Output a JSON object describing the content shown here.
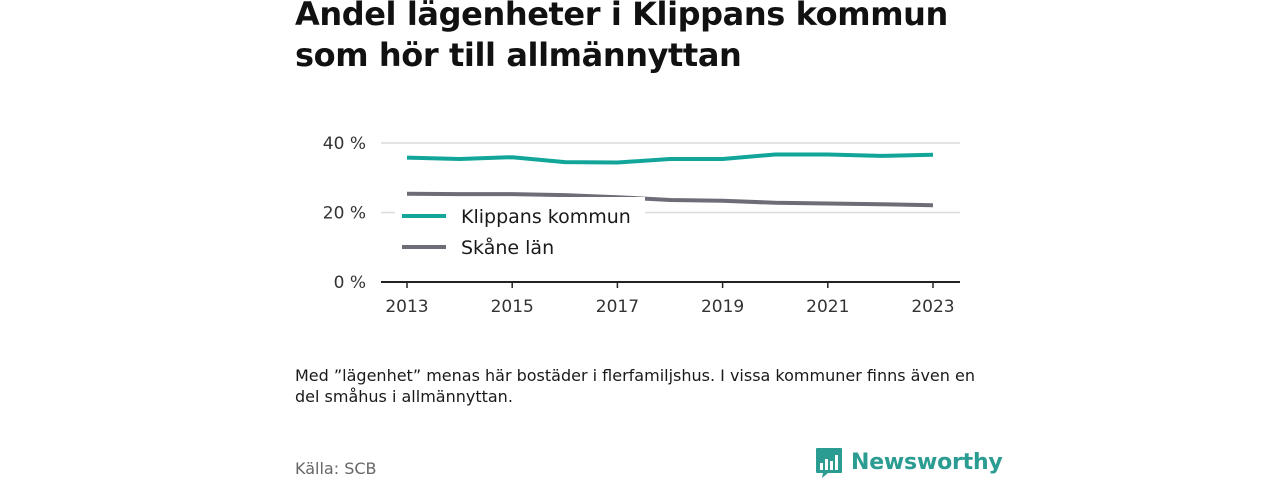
{
  "title": "Andel lägenheter i Klippans kommun som hör till allmännyttan",
  "note": "Med ”lägenhet” menas här bostäder i flerfamiljshus. I vissa kommuner finns även en del småhus i allmännyttan.",
  "source": "Källa: SCB",
  "brand": {
    "name": "Newsworthy",
    "icon": "bar-chart-speech-bubble-icon",
    "color": "#2b9c91"
  },
  "chart_data": {
    "type": "line",
    "x": [
      2013,
      2014,
      2015,
      2016,
      2017,
      2018,
      2019,
      2020,
      2021,
      2022,
      2023
    ],
    "series": [
      {
        "name": "Klippans kommun",
        "color": "#12a59a",
        "values": [
          35.8,
          35.4,
          35.9,
          34.5,
          34.4,
          35.4,
          35.4,
          36.7,
          36.7,
          36.3,
          36.6
        ]
      },
      {
        "name": "Skåne län",
        "color": "#6e6d77",
        "values": [
          25.4,
          25.3,
          25.3,
          25.0,
          24.4,
          23.6,
          23.4,
          22.8,
          22.6,
          22.4,
          22.1
        ]
      }
    ],
    "ylim": [
      0,
      40
    ],
    "yticks": [
      0,
      20,
      40
    ],
    "ytick_labels": [
      "0 %",
      "20 %",
      "40 %"
    ],
    "xticks": [
      2013,
      2015,
      2017,
      2019,
      2021,
      2023
    ],
    "xtick_labels": [
      "2013",
      "2015",
      "2017",
      "2019",
      "2021",
      "2023"
    ],
    "xlabel": "",
    "ylabel": "",
    "grid": true,
    "legend_position": "inside-bottom-left"
  }
}
